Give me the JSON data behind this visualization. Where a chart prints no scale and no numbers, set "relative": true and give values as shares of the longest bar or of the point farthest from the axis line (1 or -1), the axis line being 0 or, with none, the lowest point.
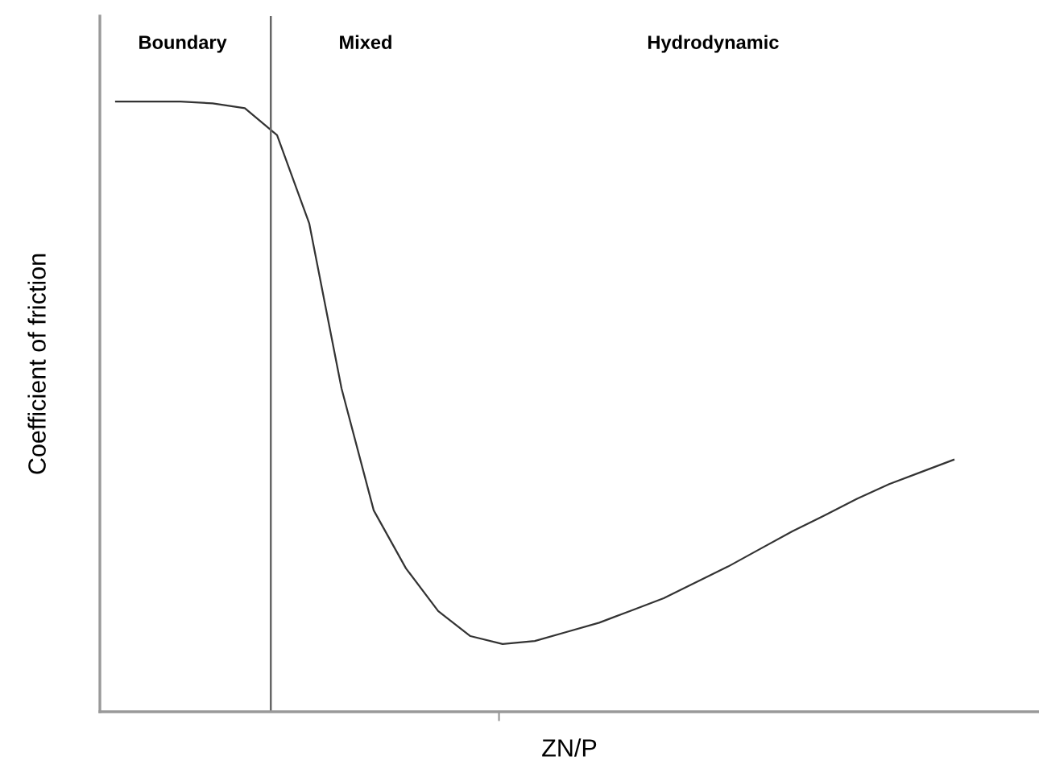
{
  "chart_data": {
    "type": "line",
    "relative": true,
    "xlabel": "ZN/P",
    "ylabel": "Coefficient of friction",
    "annotations": [
      "Boundary",
      "Mixed",
      "Hydrodynamic"
    ],
    "categories": [
      null,
      null,
      null,
      null,
      null,
      null,
      null,
      null,
      null,
      null,
      null,
      null,
      null,
      null,
      null,
      null,
      null,
      null,
      null,
      null,
      null,
      null,
      null,
      null,
      null,
      null,
      null
    ],
    "tick_labels": false,
    "grid": false,
    "legend": false,
    "marker": "none",
    "line_style": "solid",
    "series": [
      {
        "color": "#333333",
        "values": [
          1.0,
          1.0,
          1.0,
          0.997,
          0.989,
          0.945,
          0.8,
          0.53,
          0.33,
          0.235,
          0.165,
          0.124,
          0.111,
          0.116,
          0.131,
          0.146,
          0.166,
          0.186,
          0.212,
          0.238,
          0.267,
          0.296,
          0.322,
          0.349,
          0.373,
          0.393,
          0.413
        ]
      }
    ]
  }
}
